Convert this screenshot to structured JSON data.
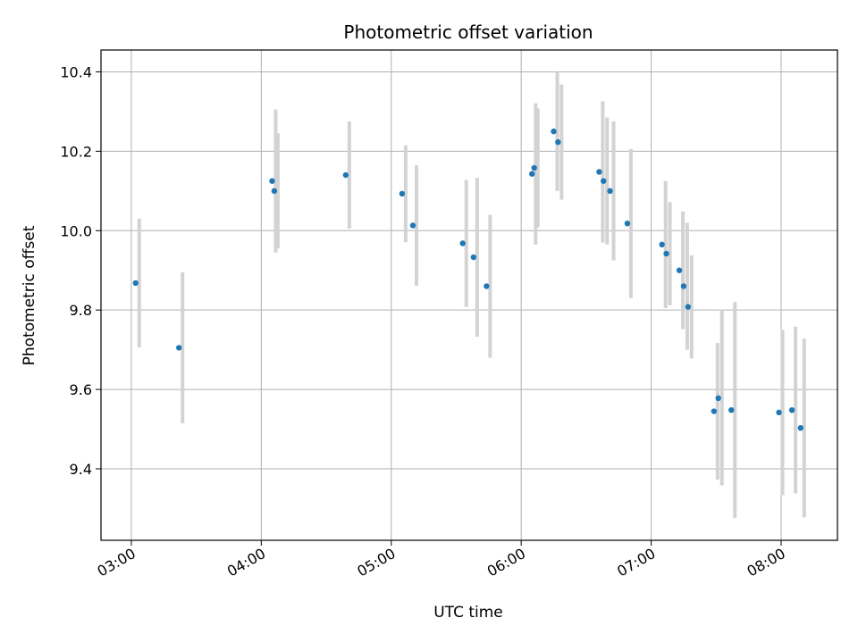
{
  "chart_data": {
    "type": "scatter",
    "title": "Photometric offset variation",
    "xlabel": "UTC time",
    "ylabel": "Photometric offset",
    "x_ticks": [
      "03:00",
      "04:00",
      "05:00",
      "06:00",
      "07:00",
      "08:00"
    ],
    "y_ticks": [
      "9.4",
      "9.6",
      "9.8",
      "10.0",
      "10.2",
      "10.4"
    ],
    "xlim": [
      "02:46",
      "08:26"
    ],
    "ylim": [
      9.22,
      10.455
    ],
    "grid": true,
    "point_color": "#1f77b4",
    "errorbar_color": "#d3d3d3",
    "points": [
      {
        "t": "03:02",
        "y": 9.868,
        "err": 0.162
      },
      {
        "t": "03:22",
        "y": 9.705,
        "err": 0.19
      },
      {
        "t": "04:05",
        "y": 10.125,
        "err": 0.18
      },
      {
        "t": "04:06",
        "y": 10.1,
        "err": 0.145
      },
      {
        "t": "04:39",
        "y": 10.14,
        "err": 0.135
      },
      {
        "t": "05:05",
        "y": 10.093,
        "err": 0.122
      },
      {
        "t": "05:10",
        "y": 10.013,
        "err": 0.152
      },
      {
        "t": "05:33",
        "y": 9.968,
        "err": 0.16
      },
      {
        "t": "05:38",
        "y": 9.933,
        "err": 0.2
      },
      {
        "t": "05:44",
        "y": 9.86,
        "err": 0.18
      },
      {
        "t": "06:05",
        "y": 10.143,
        "err": 0.178
      },
      {
        "t": "06:06",
        "y": 10.158,
        "err": 0.15
      },
      {
        "t": "06:15",
        "y": 10.25,
        "err": 0.15
      },
      {
        "t": "06:17",
        "y": 10.223,
        "err": 0.145
      },
      {
        "t": "06:36",
        "y": 10.148,
        "err": 0.178
      },
      {
        "t": "06:38",
        "y": 10.125,
        "err": 0.16
      },
      {
        "t": "06:41",
        "y": 10.1,
        "err": 0.175
      },
      {
        "t": "06:49",
        "y": 10.018,
        "err": 0.188
      },
      {
        "t": "07:05",
        "y": 9.965,
        "err": 0.16
      },
      {
        "t": "07:07",
        "y": 9.942,
        "err": 0.13
      },
      {
        "t": "07:13",
        "y": 9.9,
        "err": 0.148
      },
      {
        "t": "07:15",
        "y": 9.86,
        "err": 0.16
      },
      {
        "t": "07:17",
        "y": 9.808,
        "err": 0.13
      },
      {
        "t": "07:29",
        "y": 9.545,
        "err": 0.172
      },
      {
        "t": "07:31",
        "y": 9.578,
        "err": 0.22
      },
      {
        "t": "07:37",
        "y": 9.548,
        "err": 0.272
      },
      {
        "t": "07:59",
        "y": 9.542,
        "err": 0.208
      },
      {
        "t": "08:05",
        "y": 9.548,
        "err": 0.21
      },
      {
        "t": "08:09",
        "y": 9.503,
        "err": 0.225
      }
    ]
  }
}
